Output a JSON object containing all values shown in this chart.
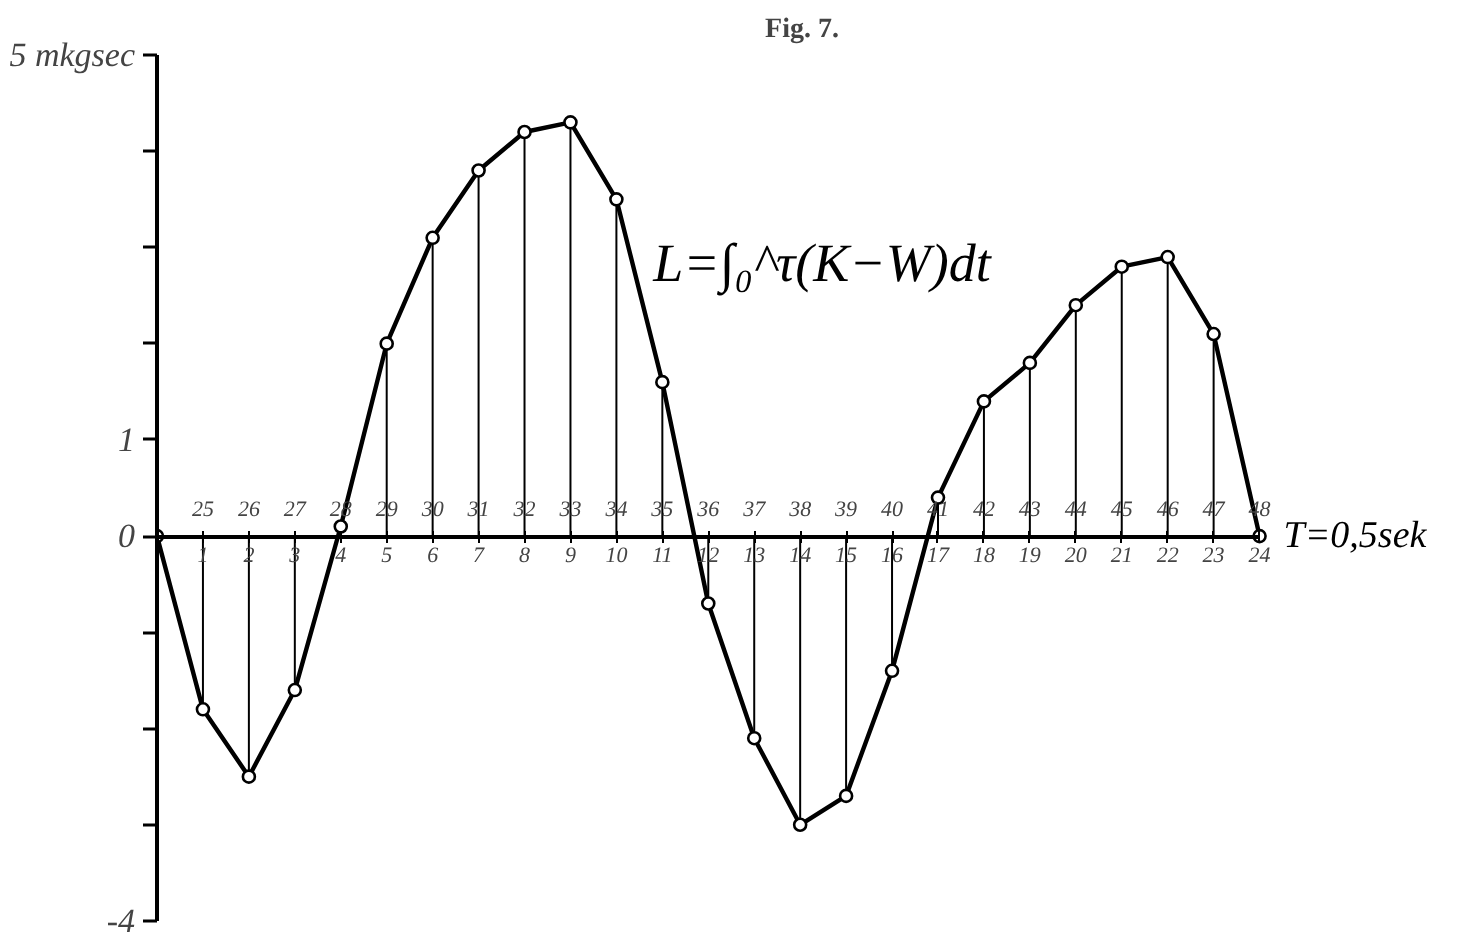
{
  "chart_data": {
    "type": "line",
    "title": "Fig. 7.",
    "xlabel": "T=0,5sek",
    "annotations": [
      "L=∫₀^τ(K−W)dt"
    ],
    "x": [
      0,
      1,
      2,
      3,
      4,
      5,
      6,
      7,
      8,
      9,
      10,
      11,
      12,
      13,
      14,
      15,
      16,
      17,
      18,
      19,
      20,
      21,
      22,
      23,
      24
    ],
    "series": [
      {
        "type": "lollipop",
        "color": "#000000",
        "values": [
          0,
          -1.8,
          -2.5,
          -1.6,
          0.1,
          2.0,
          3.1,
          3.8,
          4.2,
          4.3,
          3.5,
          1.6,
          -0.7,
          -2.1,
          -3.0,
          -2.7,
          -1.4,
          0.4,
          1.4,
          1.8,
          2.4,
          2.8,
          2.9,
          2.1,
          0
        ]
      },
      {
        "type": "line",
        "color": "#000000",
        "marker": "none",
        "values": [
          0,
          -1.8,
          -2.5,
          -1.6,
          0.1,
          2.0,
          3.1,
          3.8,
          4.2,
          4.3,
          3.5,
          1.6,
          -0.7,
          -2.1,
          -3.0,
          -2.7,
          -1.4,
          0.4,
          1.4,
          1.8,
          2.4,
          2.8,
          2.9,
          2.1,
          0
        ]
      }
    ],
    "xlim": [
      0,
      24
    ],
    "xticks": [
      1,
      2,
      3,
      4,
      5,
      6,
      7,
      8,
      9,
      10,
      11,
      12,
      13,
      14,
      15,
      16,
      17,
      18,
      19,
      20,
      21,
      22,
      23,
      24
    ],
    "x2lim": [
      24,
      48
    ],
    "x2ticks": [
      25,
      26,
      27,
      28,
      29,
      30,
      31,
      32,
      33,
      34,
      35,
      36,
      37,
      38,
      39,
      40,
      41,
      42,
      43,
      44,
      45,
      46,
      47,
      48
    ],
    "ylim": [
      -4,
      5
    ],
    "yticks": [
      {
        "value": 5,
        "label": "5 mkgsec"
      },
      {
        "value": 4,
        "label": null
      },
      {
        "value": 3,
        "label": null
      },
      {
        "value": 2,
        "label": null
      },
      1,
      0,
      {
        "value": -1,
        "label": null
      },
      {
        "value": -2,
        "label": null
      },
      {
        "value": -3,
        "label": null
      },
      -4
    ],
    "marker": "circle",
    "line_style": "solid"
  }
}
